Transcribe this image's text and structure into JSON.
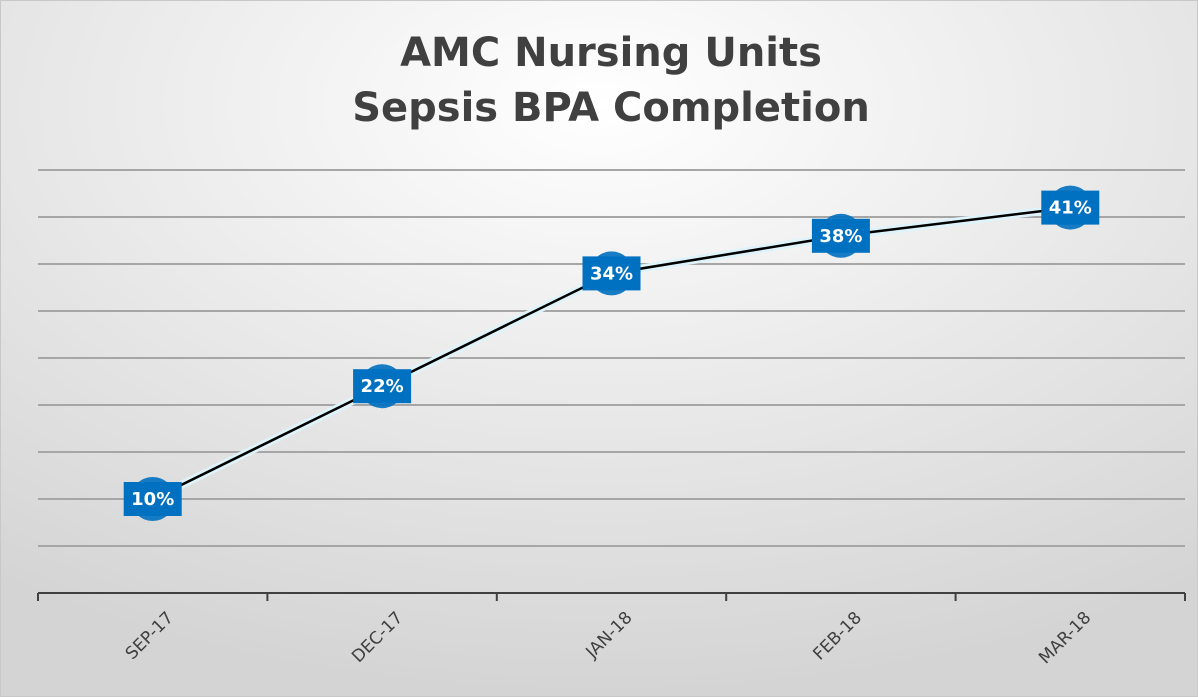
{
  "chart_data": {
    "type": "line",
    "title": [
      "AMC Nursing Units",
      "Sepsis BPA Completion"
    ],
    "categories": [
      "SEP-17",
      "DEC-17",
      "JAN-18",
      "FEB-18",
      "MAR-18"
    ],
    "series": [
      {
        "name": "Sepsis BPA Completion",
        "color": "#000000",
        "values": [
          10,
          22,
          34,
          38,
          41
        ],
        "value_labels": [
          "10%",
          "22%",
          "34%",
          "38%",
          "41%"
        ]
      }
    ],
    "ylim": [
      0,
      45
    ],
    "yticks": [
      0,
      5,
      10,
      15,
      20,
      25,
      30,
      35,
      40,
      45
    ],
    "grid": true,
    "label_color": "#0070c0"
  }
}
